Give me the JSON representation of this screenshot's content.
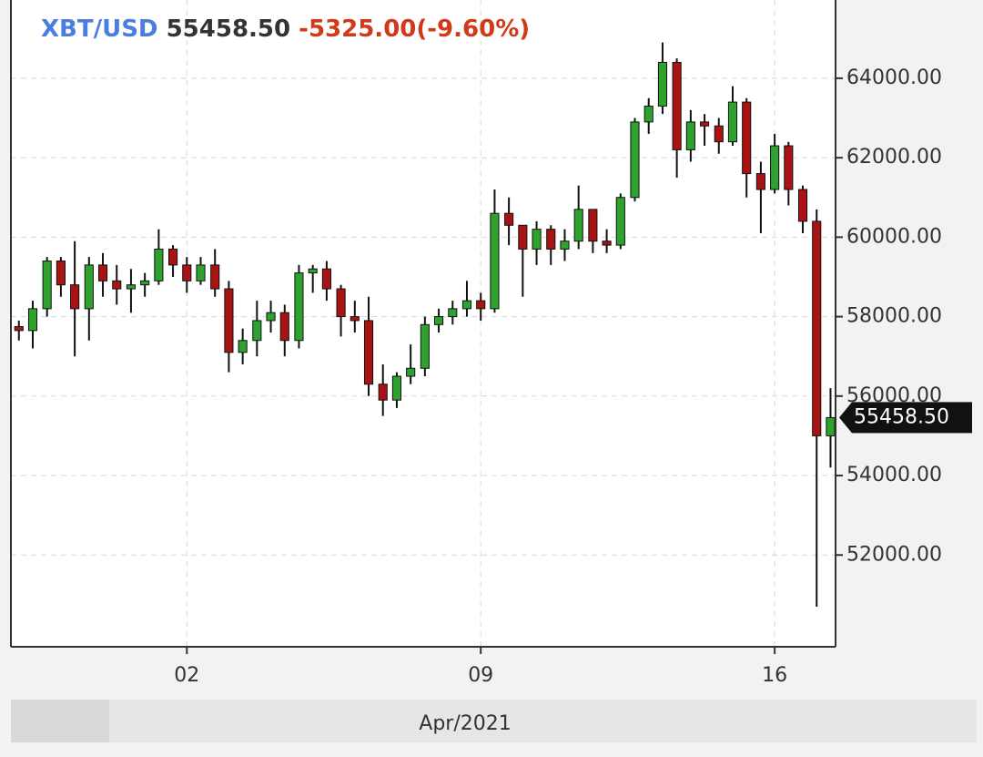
{
  "chart_data": {
    "type": "candlestick",
    "header": {
      "symbol": "XBT/USD",
      "last": "55458.50",
      "change": "-5325.00(-9.60%)"
    },
    "last_price_label": "55458.50",
    "x_axis_label": "Apr/2021",
    "up_color": "#2ea12e",
    "down_color": "#a81414",
    "grid": true,
    "xlim": [
      -2.19,
      17.45
    ],
    "xticks": [
      {
        "value": 2,
        "label": "02"
      },
      {
        "value": 9,
        "label": "09"
      },
      {
        "value": 16,
        "label": "16"
      }
    ],
    "ylim": [
      49690,
      65970
    ],
    "yticks": [
      {
        "value": 52000,
        "label": "52000.00"
      },
      {
        "value": 54000,
        "label": "54000.00"
      },
      {
        "value": 56000,
        "label": "56000.00"
      },
      {
        "value": 58000,
        "label": "58000.00"
      },
      {
        "value": 60000,
        "label": "60000.00"
      },
      {
        "value": 62000,
        "label": "62000.00"
      },
      {
        "value": 64000,
        "label": "64000.00"
      }
    ],
    "x": [
      -2,
      -1.67,
      -1.33,
      -1,
      -0.67,
      -0.33,
      0,
      0.33,
      0.67,
      1,
      1.33,
      1.67,
      2,
      2.33,
      2.67,
      3,
      3.33,
      3.67,
      4,
      4.33,
      4.67,
      5,
      5.33,
      5.67,
      6,
      6.33,
      6.67,
      7,
      7.33,
      7.67,
      8,
      8.33,
      8.67,
      9,
      9.33,
      9.67,
      10,
      10.33,
      10.67,
      11,
      11.33,
      11.67,
      12,
      12.33,
      12.67,
      13,
      13.33,
      13.67,
      14,
      14.33,
      14.67,
      15,
      15.33,
      15.67,
      16,
      16.33,
      16.67,
      17,
      17.33
    ],
    "open": [
      57750,
      57650,
      58200,
      59400,
      58800,
      58200,
      59300,
      58900,
      58700,
      58800,
      58900,
      59700,
      59300,
      58900,
      59300,
      58700,
      57100,
      57400,
      57900,
      58100,
      57400,
      59100,
      59200,
      58700,
      58000,
      57900,
      56300,
      55900,
      56500,
      56700,
      57800,
      58000,
      58200,
      58400,
      58200,
      60600,
      60300,
      59700,
      60200,
      59700,
      59900,
      60700,
      59900,
      59800,
      61000,
      62900,
      63300,
      64400,
      62200,
      62900,
      62800,
      62400,
      63400,
      61600,
      61200,
      62300,
      61200,
      60400,
      55000
    ],
    "high": [
      57900,
      58400,
      59500,
      59500,
      59900,
      59500,
      59600,
      59300,
      59200,
      59100,
      60200,
      59800,
      59500,
      59500,
      59700,
      58900,
      57700,
      58400,
      58400,
      58300,
      59300,
      59300,
      59400,
      58800,
      58400,
      58500,
      56800,
      56600,
      57300,
      58000,
      58200,
      58400,
      58900,
      58600,
      61200,
      61000,
      60300,
      60400,
      60300,
      60200,
      61300,
      60700,
      60200,
      61100,
      63000,
      63500,
      64900,
      64500,
      63200,
      63100,
      63000,
      63800,
      63500,
      61900,
      62600,
      62400,
      61300,
      60700,
      56200
    ],
    "low": [
      57400,
      57200,
      58000,
      58500,
      57000,
      57400,
      58500,
      58300,
      58100,
      58500,
      58800,
      59000,
      58600,
      58800,
      58500,
      56600,
      56800,
      57000,
      57600,
      57000,
      57200,
      58600,
      58400,
      57500,
      57600,
      56000,
      55500,
      55700,
      56300,
      56500,
      57600,
      57800,
      58000,
      57900,
      58100,
      59800,
      58500,
      59300,
      59300,
      59400,
      59700,
      59600,
      59600,
      59700,
      60900,
      62600,
      63100,
      61500,
      61900,
      62300,
      62100,
      62300,
      61000,
      60100,
      61100,
      60800,
      60100,
      50700,
      54200
    ],
    "close": [
      57650,
      58200,
      59400,
      58800,
      58200,
      59300,
      58900,
      58700,
      58800,
      58900,
      59700,
      59300,
      58900,
      59300,
      58700,
      57100,
      57400,
      57900,
      58100,
      57400,
      59100,
      59200,
      58700,
      58000,
      57900,
      56300,
      55900,
      56500,
      56700,
      57800,
      58000,
      58200,
      58400,
      58200,
      60600,
      60300,
      59700,
      60200,
      59700,
      59900,
      60700,
      59900,
      59800,
      61000,
      62900,
      63300,
      64400,
      62200,
      62900,
      62800,
      62400,
      63400,
      61600,
      61200,
      62300,
      61200,
      60400,
      55000,
      55458.5
    ]
  }
}
